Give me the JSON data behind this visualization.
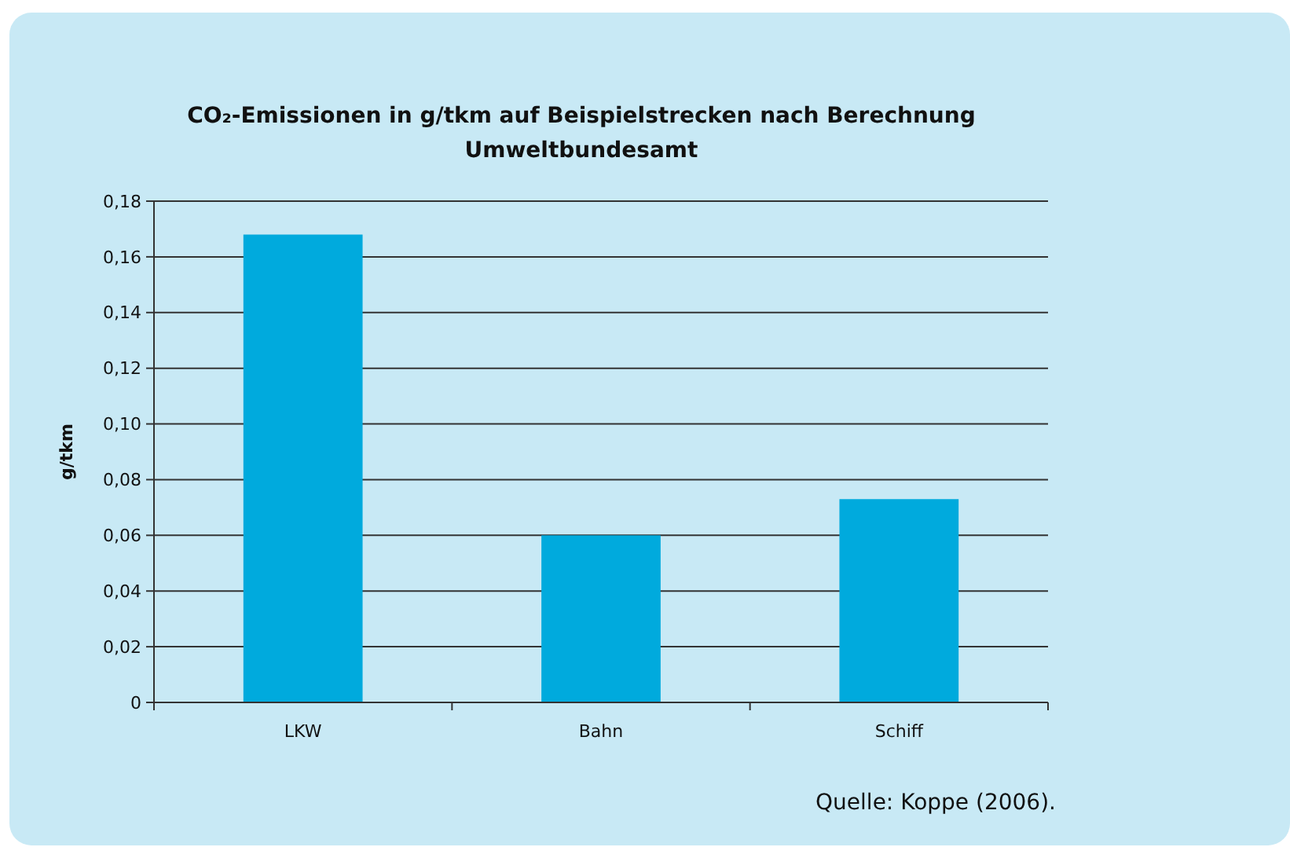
{
  "chart_data": {
    "type": "bar",
    "title": "CO₂-Emissionen in g/tkm auf Beispielstrecken nach Berechnung Umweltbundesamt",
    "ylabel": "g/tkm",
    "categories": [
      "LKW",
      "Bahn",
      "Schiff"
    ],
    "values": [
      0.168,
      0.06,
      0.073
    ],
    "color": "#00aadd",
    "ylim": [
      0,
      0.18
    ],
    "yticks": [
      0,
      {
        "value": 0.02,
        "label": "0,02"
      },
      {
        "value": 0.04,
        "label": "0,04"
      },
      {
        "value": 0.06,
        "label": "0,06"
      },
      {
        "value": 0.08,
        "label": "0,08"
      },
      {
        "value": 0.1,
        "label": "0,10"
      },
      {
        "value": 0.12,
        "label": "0,12"
      },
      {
        "value": 0.14,
        "label": "0,14"
      },
      {
        "value": 0.16,
        "label": "0,16"
      },
      {
        "value": 0.18,
        "label": "0,18"
      }
    ],
    "grid": "y",
    "annotations": [
      "Quelle: Koppe (2006)."
    ]
  }
}
